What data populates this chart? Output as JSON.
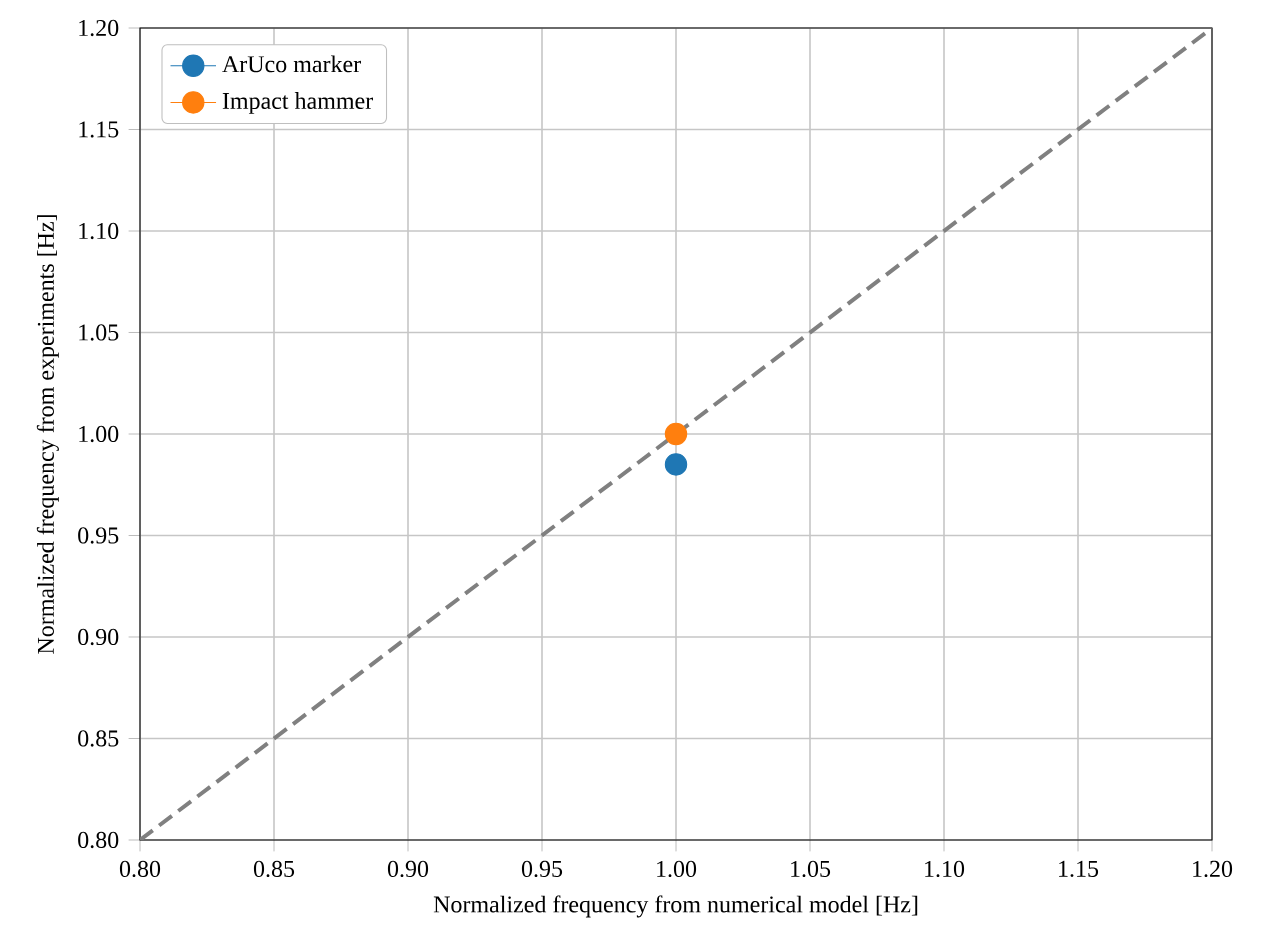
{
  "chart_data": {
    "type": "scatter",
    "xlabel": "Normalized frequency from numerical model [Hz]",
    "ylabel": "Normalized frequency from experiments [Hz]",
    "xlim": [
      0.8,
      1.2
    ],
    "ylim": [
      0.8,
      1.2
    ],
    "xticks": [
      {
        "value": 0.8,
        "label": "0.80"
      },
      {
        "value": 0.85,
        "label": "0.85"
      },
      {
        "value": 0.9,
        "label": "0.90"
      },
      {
        "value": 0.95,
        "label": "0.95"
      },
      {
        "value": 1.0,
        "label": "1.00"
      },
      {
        "value": 1.05,
        "label": "1.05"
      },
      {
        "value": 1.1,
        "label": "1.10"
      },
      {
        "value": 1.15,
        "label": "1.15"
      },
      {
        "value": 1.2,
        "label": "1.20"
      }
    ],
    "yticks": [
      {
        "value": 0.8,
        "label": "0.80"
      },
      {
        "value": 0.85,
        "label": "0.85"
      },
      {
        "value": 0.9,
        "label": "0.90"
      },
      {
        "value": 0.95,
        "label": "0.95"
      },
      {
        "value": 1.0,
        "label": "1.00"
      },
      {
        "value": 1.05,
        "label": "1.05"
      },
      {
        "value": 1.1,
        "label": "1.10"
      },
      {
        "value": 1.15,
        "label": "1.15"
      },
      {
        "value": 1.2,
        "label": "1.20"
      }
    ],
    "grid": true,
    "legend": "top left",
    "marker": "circle",
    "series": [
      {
        "type": "line",
        "x": [
          0.8,
          1.2
        ],
        "values": [
          0.8,
          1.2
        ],
        "color": "#808080",
        "line_style": "dashed",
        "marker": "none"
      },
      {
        "name": "ArUco marker",
        "x": [
          1.0
        ],
        "values": [
          0.985
        ],
        "color": "#1f77b4"
      },
      {
        "name": "Impact hammer",
        "x": [
          1.0
        ],
        "values": [
          1.0
        ],
        "color": "#ff7f0e"
      }
    ]
  }
}
